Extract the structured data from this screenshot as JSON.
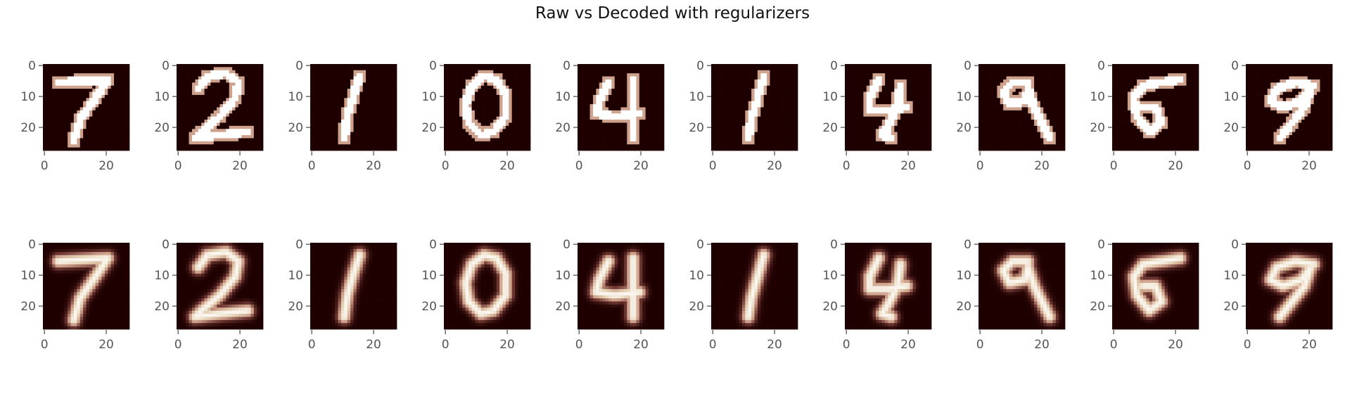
{
  "figure": {
    "title": "Raw vs Decoded with regularizers"
  },
  "chart_data": {
    "type": "heatmap",
    "title": "Raw vs Decoded with regularizers",
    "rows": 2,
    "cols": 10,
    "image_size": [
      28,
      28
    ],
    "colormap": "pink",
    "colors": {
      "low": "#1e0000",
      "mid": "#c89a86",
      "high": "#ffffff",
      "tick": "#555555"
    },
    "x_ticks": [
      "0",
      "20"
    ],
    "y_ticks": [
      "0",
      "10",
      "20"
    ],
    "x_tick_values": [
      0,
      20
    ],
    "y_tick_values": [
      0,
      10,
      20
    ],
    "grid": false,
    "digits": [
      "7",
      "2",
      "1",
      "0",
      "4",
      "1",
      "4",
      "9",
      "5",
      "9"
    ],
    "row_labels": [
      "",
      ""
    ]
  }
}
